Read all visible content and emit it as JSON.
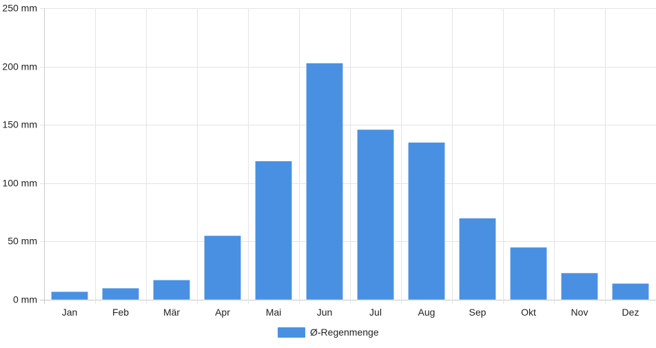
{
  "chart_data": {
    "type": "bar",
    "categories": [
      "Jan",
      "Feb",
      "Mär",
      "Apr",
      "Mai",
      "Jun",
      "Jul",
      "Aug",
      "Sep",
      "Okt",
      "Nov",
      "Dez"
    ],
    "series": [
      {
        "name": "Ø-Regenmenge",
        "values": [
          7,
          10,
          17,
          55,
          119,
          203,
          146,
          135,
          70,
          45,
          23,
          14
        ],
        "color": "#4a90e2"
      }
    ],
    "y_ticks": [
      "250 mm",
      "200 mm",
      "150 mm",
      "100 mm",
      "50 mm",
      "0 mm"
    ],
    "y_tick_values": [
      250,
      200,
      150,
      100,
      50,
      0
    ],
    "ylim": [
      0,
      250
    ],
    "grid": true,
    "legend": "bottom-center"
  }
}
